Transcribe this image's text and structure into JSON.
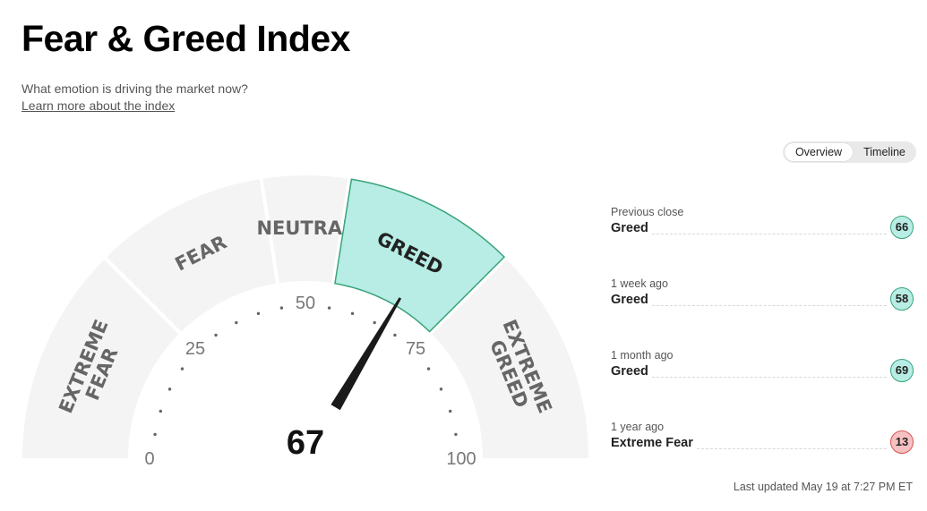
{
  "header": {
    "title": "Fear & Greed Index",
    "subtitle": "What emotion is driving the market now?",
    "learn_more": "Learn more about the index"
  },
  "tabs": [
    {
      "label": "Overview",
      "active": true
    },
    {
      "label": "Timeline",
      "active": false
    }
  ],
  "gauge": {
    "value": 67,
    "min": 0,
    "max": 100,
    "current_zone": "GREED",
    "zones": [
      {
        "label": "EXTREME FEAR",
        "lines": [
          "EXTREME",
          "FEAR"
        ],
        "from": 0,
        "to": 25
      },
      {
        "label": "FEAR",
        "lines": [
          "FEAR"
        ],
        "from": 25,
        "to": 45
      },
      {
        "label": "NEUTRAL",
        "lines": [
          "NEUTRAL"
        ],
        "from": 45,
        "to": 55
      },
      {
        "label": "GREED",
        "lines": [
          "GREED"
        ],
        "from": 55,
        "to": 75
      },
      {
        "label": "EXTREME GREED",
        "lines": [
          "EXTREME",
          "GREED"
        ],
        "from": 75,
        "to": 100
      }
    ],
    "tick_labels": [
      "0",
      "25",
      "50",
      "75",
      "100"
    ],
    "colors": {
      "zone_fill": "#f4f4f4",
      "active_fill": "#b7ede4",
      "active_stroke": "#3aa37c",
      "needle": "#1a1a1a",
      "label_text": "#666666",
      "active_label_text": "#222222"
    }
  },
  "history": [
    {
      "period": "Previous close",
      "label": "Greed",
      "value": "66",
      "sentiment": "greed"
    },
    {
      "period": "1 week ago",
      "label": "Greed",
      "value": "58",
      "sentiment": "greed"
    },
    {
      "period": "1 month ago",
      "label": "Greed",
      "value": "69",
      "sentiment": "greed"
    },
    {
      "period": "1 year ago",
      "label": "Extreme Fear",
      "value": "13",
      "sentiment": "fear"
    }
  ],
  "last_updated": "Last updated May 19 at 7:27 PM ET"
}
